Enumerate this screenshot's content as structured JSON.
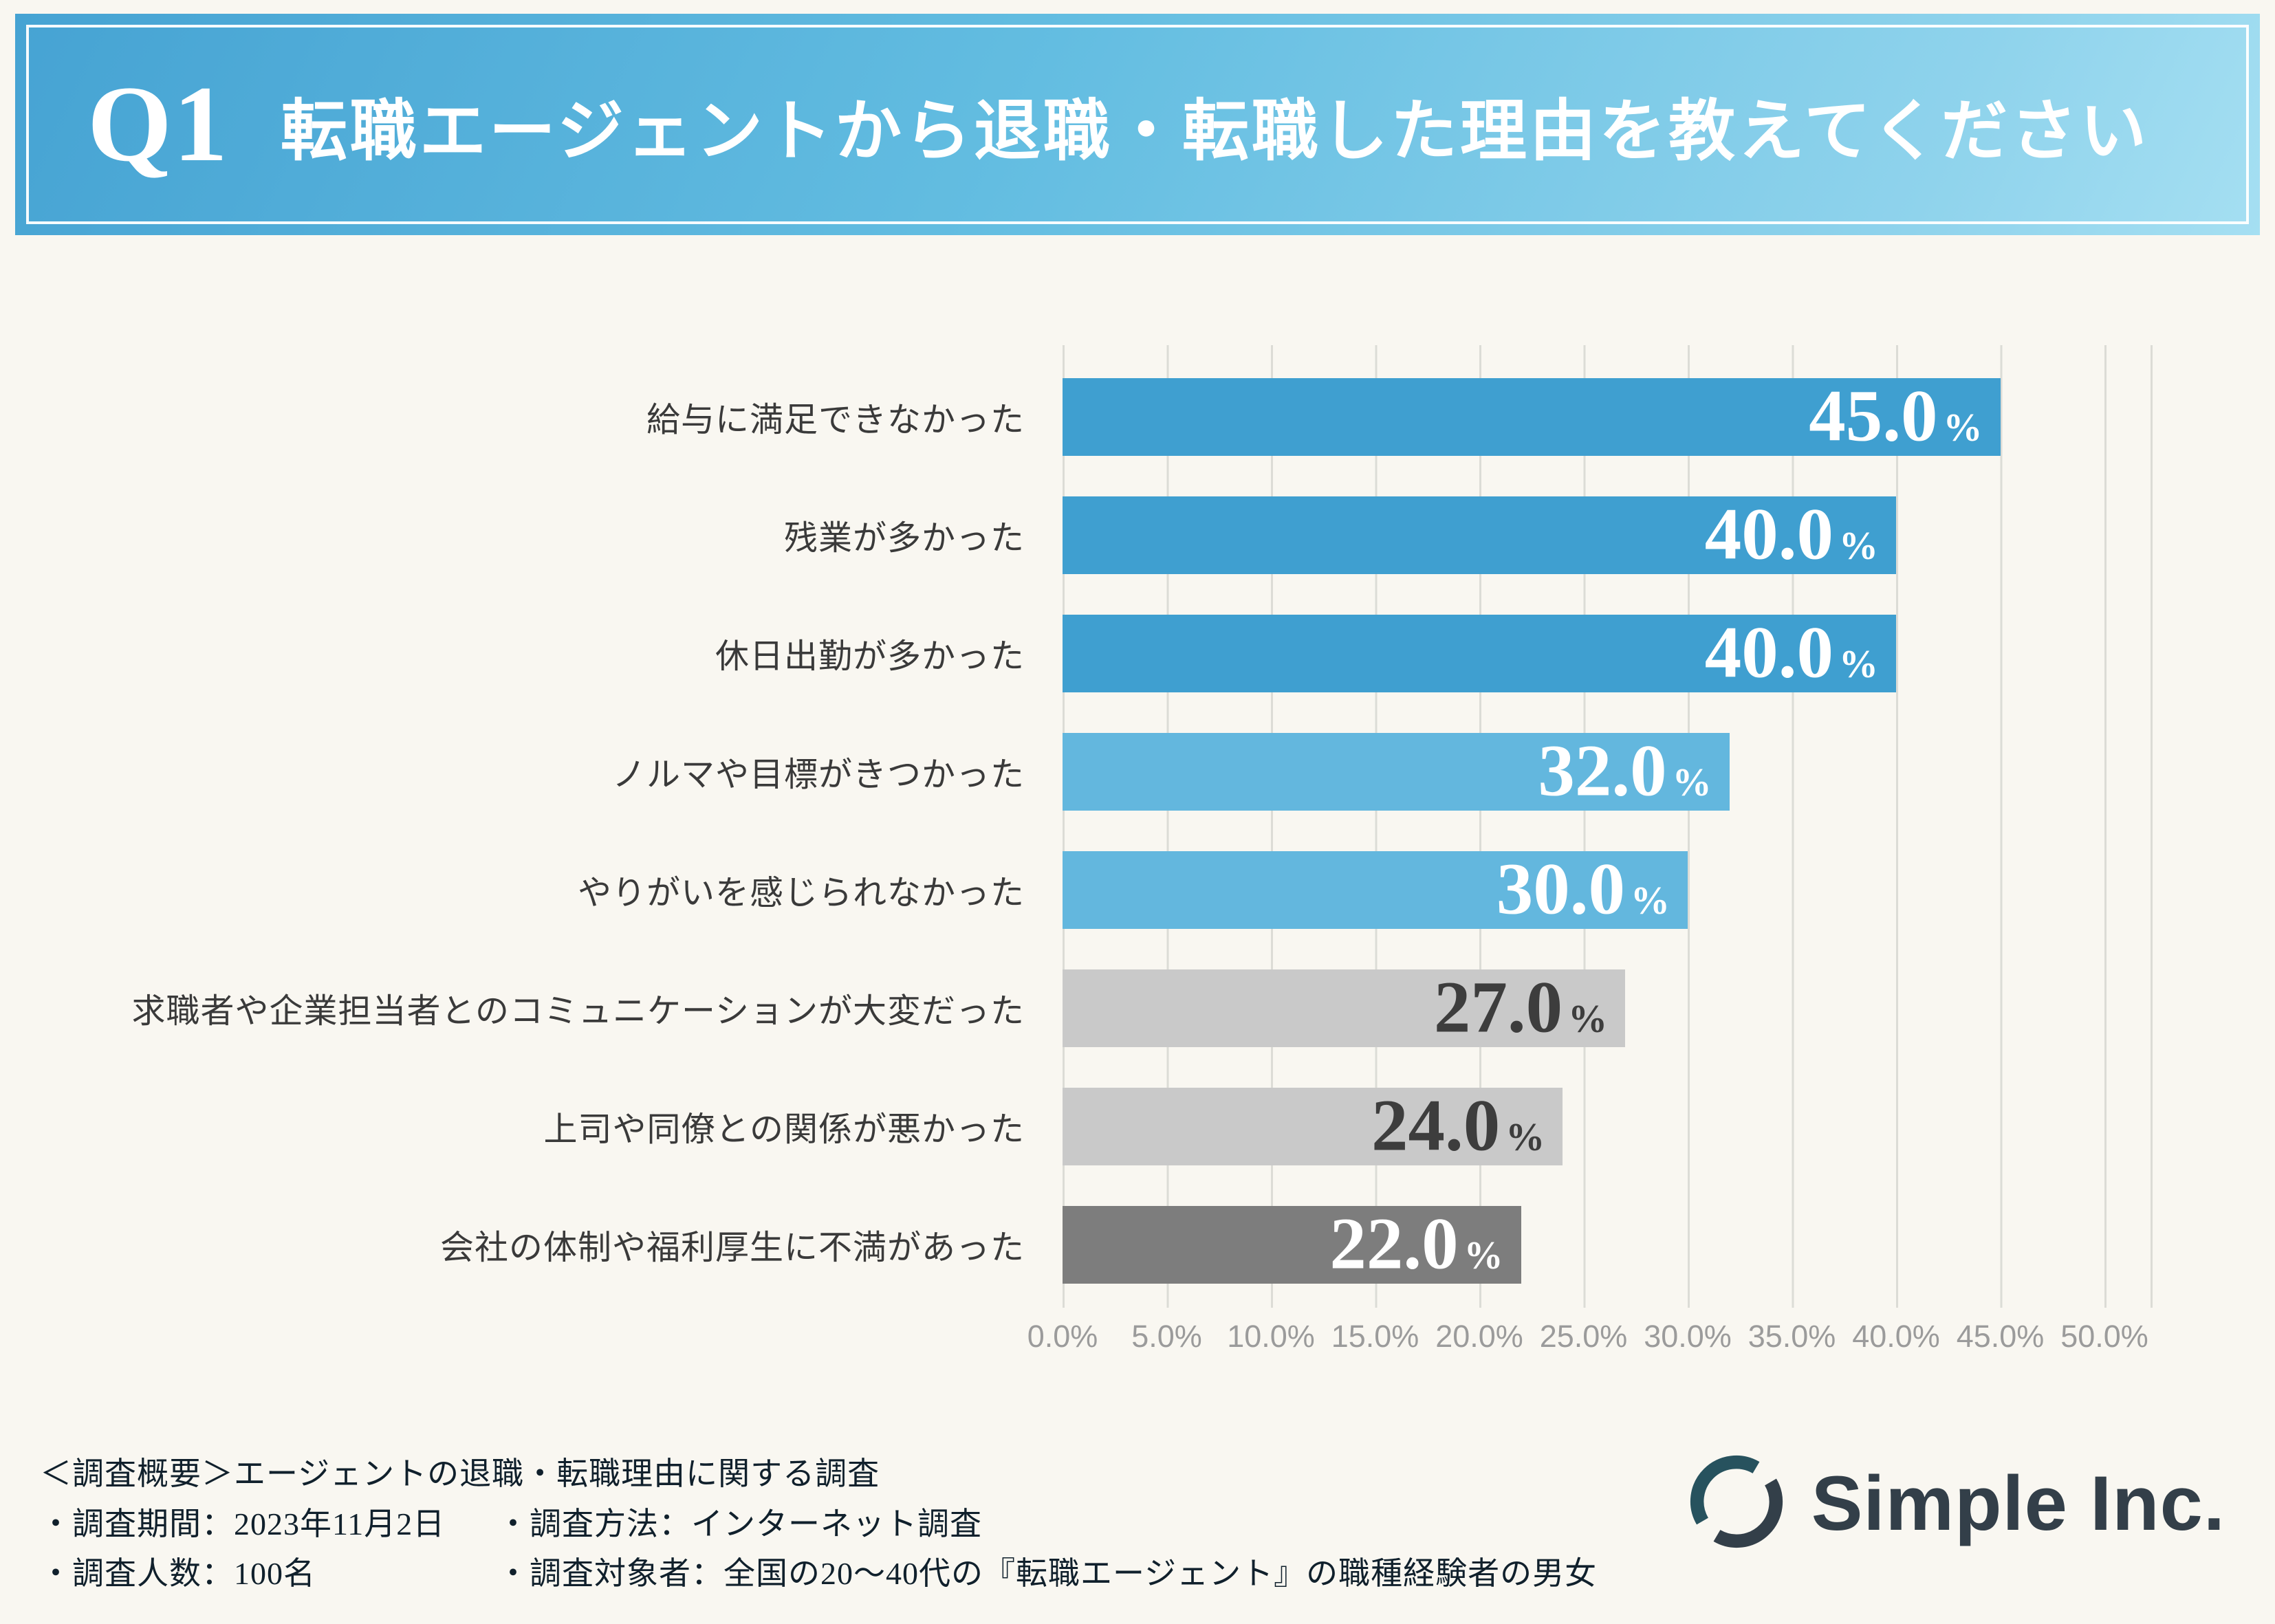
{
  "header": {
    "q": "Q1",
    "title": "転職エージェントから退職・転職した理由を教えてください"
  },
  "chart_data": {
    "type": "bar",
    "orientation": "horizontal",
    "title": "転職エージェントから退職・転職した理由",
    "categories": [
      "給与に満足できなかった",
      "残業が多かった",
      "休日出勤が多かった",
      "ノルマや目標がきつかった",
      "やりがいを感じられなかった",
      "求職者や企業担当者とのコミュニケーションが大変だった",
      "上司や同僚との関係が悪かった",
      "会社の体制や福利厚生に不満があった"
    ],
    "values": [
      45.0,
      40.0,
      40.0,
      32.0,
      30.0,
      27.0,
      24.0,
      22.0
    ],
    "xlim": [
      0,
      50
    ],
    "x_ticks": [
      "0.0%",
      "5.0%",
      "10.0%",
      "15.0%",
      "20.0%",
      "25.0%",
      "30.0%",
      "35.0%",
      "40.0%",
      "45.0%",
      "50.0%"
    ],
    "bar_colors": [
      "#3f9fd0",
      "#3f9fd0",
      "#3f9fd0",
      "#63b7de",
      "#63b7de",
      "#c9c9c9",
      "#c9c9c9",
      "#7d7d7d"
    ],
    "value_text_colors": [
      "#ffffff",
      "#ffffff",
      "#ffffff",
      "#ffffff",
      "#ffffff",
      "#3d3d3d",
      "#3d3d3d",
      "#ffffff"
    ],
    "grid": true,
    "legend": false
  },
  "footer": {
    "line1": "＜調査概要＞エージェントの退職・転職理由に関する調査",
    "line2a": "・調査期間：2023年11月2日",
    "line2b": "・調査方法：インターネット調査",
    "line3a": "・調査人数：100名",
    "line3b": "・調査対象者：全国の20〜40代の『転職エージェント』の職種経験者の男女"
  },
  "logo": {
    "text": "Simple Inc.",
    "color": "#333f49"
  }
}
